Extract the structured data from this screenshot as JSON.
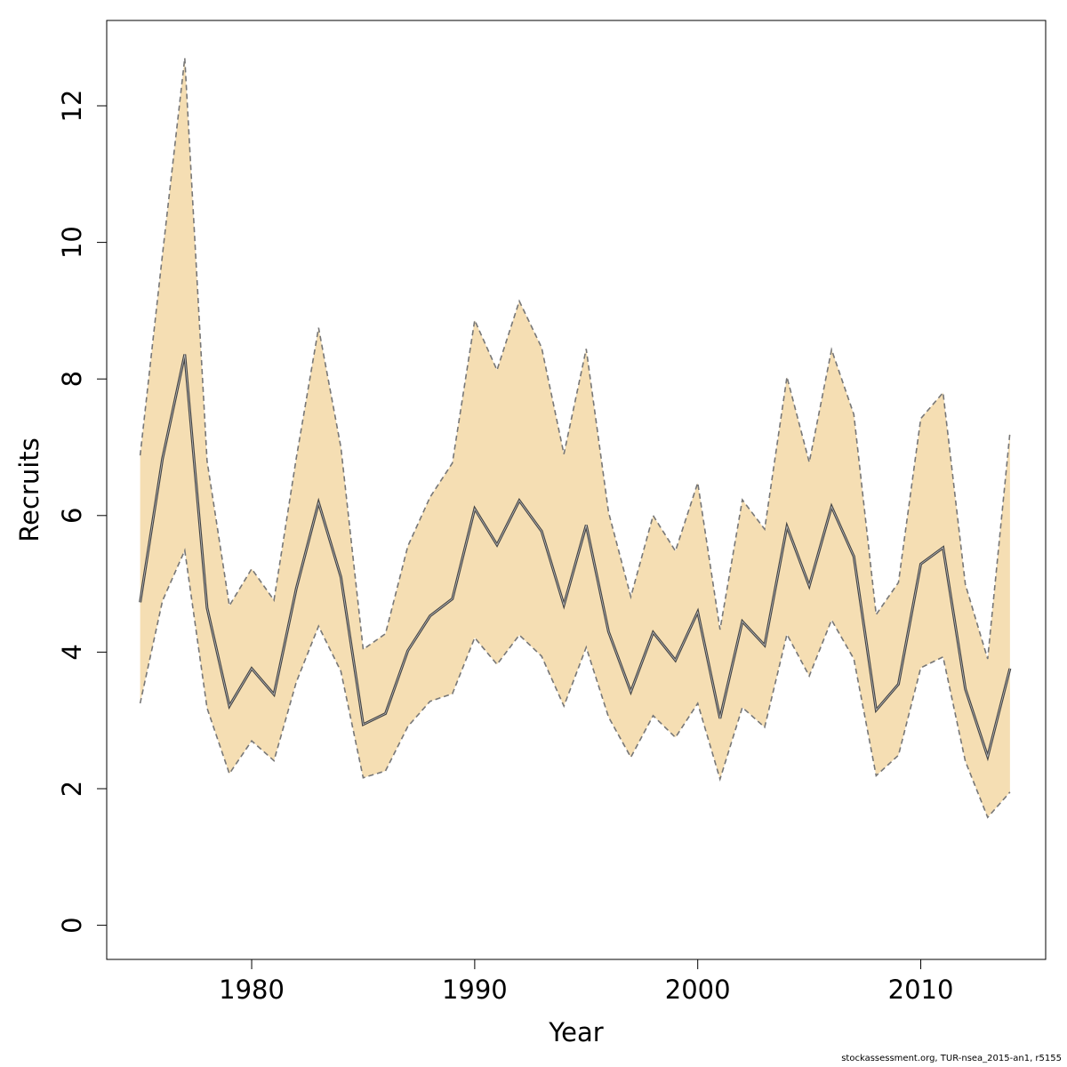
{
  "chart_data": {
    "type": "line",
    "xlabel": "Year",
    "ylabel": "Recruits",
    "xlim": [
      1973.5,
      2015.6
    ],
    "ylim": [
      -0.5,
      13.25
    ],
    "x_ticks": [
      1980,
      1990,
      2000,
      2010
    ],
    "y_ticks": [
      0,
      2,
      4,
      6,
      8,
      10,
      12
    ],
    "x": [
      1975,
      1976,
      1977,
      1978,
      1979,
      1980,
      1981,
      1982,
      1983,
      1984,
      1985,
      1986,
      1987,
      1988,
      1989,
      1990,
      1991,
      1992,
      1993,
      1994,
      1995,
      1996,
      1997,
      1998,
      1999,
      2000,
      2001,
      2002,
      2003,
      2004,
      2005,
      2006,
      2007,
      2008,
      2009,
      2010,
      2011,
      2012,
      2013,
      2014
    ],
    "series": [
      {
        "name": "estimate",
        "style": "solid",
        "values": [
          4.73,
          6.83,
          8.36,
          4.65,
          3.21,
          3.76,
          3.38,
          4.93,
          6.19,
          5.1,
          2.94,
          3.1,
          4.02,
          4.53,
          4.78,
          6.1,
          5.57,
          6.22,
          5.77,
          4.69,
          5.86,
          4.3,
          3.42,
          4.29,
          3.88,
          4.59,
          3.03,
          4.45,
          4.1,
          5.84,
          4.97,
          6.13,
          5.4,
          3.15,
          3.53,
          5.29,
          5.53,
          3.46,
          2.47,
          3.76
        ]
      },
      {
        "name": "upper",
        "style": "dashed",
        "values": [
          6.88,
          9.82,
          12.7,
          6.8,
          4.68,
          5.22,
          4.76,
          6.84,
          8.75,
          7.0,
          4.04,
          4.27,
          5.55,
          6.27,
          6.77,
          8.86,
          8.13,
          9.14,
          8.46,
          6.9,
          8.44,
          6.05,
          4.81,
          6.0,
          5.48,
          6.48,
          4.33,
          6.23,
          5.8,
          8.03,
          6.78,
          8.43,
          7.48,
          4.55,
          5.02,
          7.42,
          7.8,
          4.99,
          3.9,
          7.22
        ]
      },
      {
        "name": "lower",
        "style": "dashed",
        "values": [
          3.25,
          4.75,
          5.49,
          3.18,
          2.22,
          2.7,
          2.41,
          3.56,
          4.38,
          3.72,
          2.16,
          2.26,
          2.91,
          3.28,
          3.39,
          4.21,
          3.82,
          4.25,
          3.94,
          3.21,
          4.07,
          3.05,
          2.46,
          3.07,
          2.75,
          3.25,
          2.14,
          3.19,
          2.9,
          4.26,
          3.65,
          4.47,
          3.9,
          2.19,
          2.49,
          3.77,
          3.93,
          2.4,
          1.58,
          1.95
        ]
      }
    ],
    "band_color": "#F5DEB3",
    "line_color": "#444444",
    "dash_color": "#777777"
  },
  "footer": "stockassessment.org, TUR-nsea_2015-an1, r5155"
}
